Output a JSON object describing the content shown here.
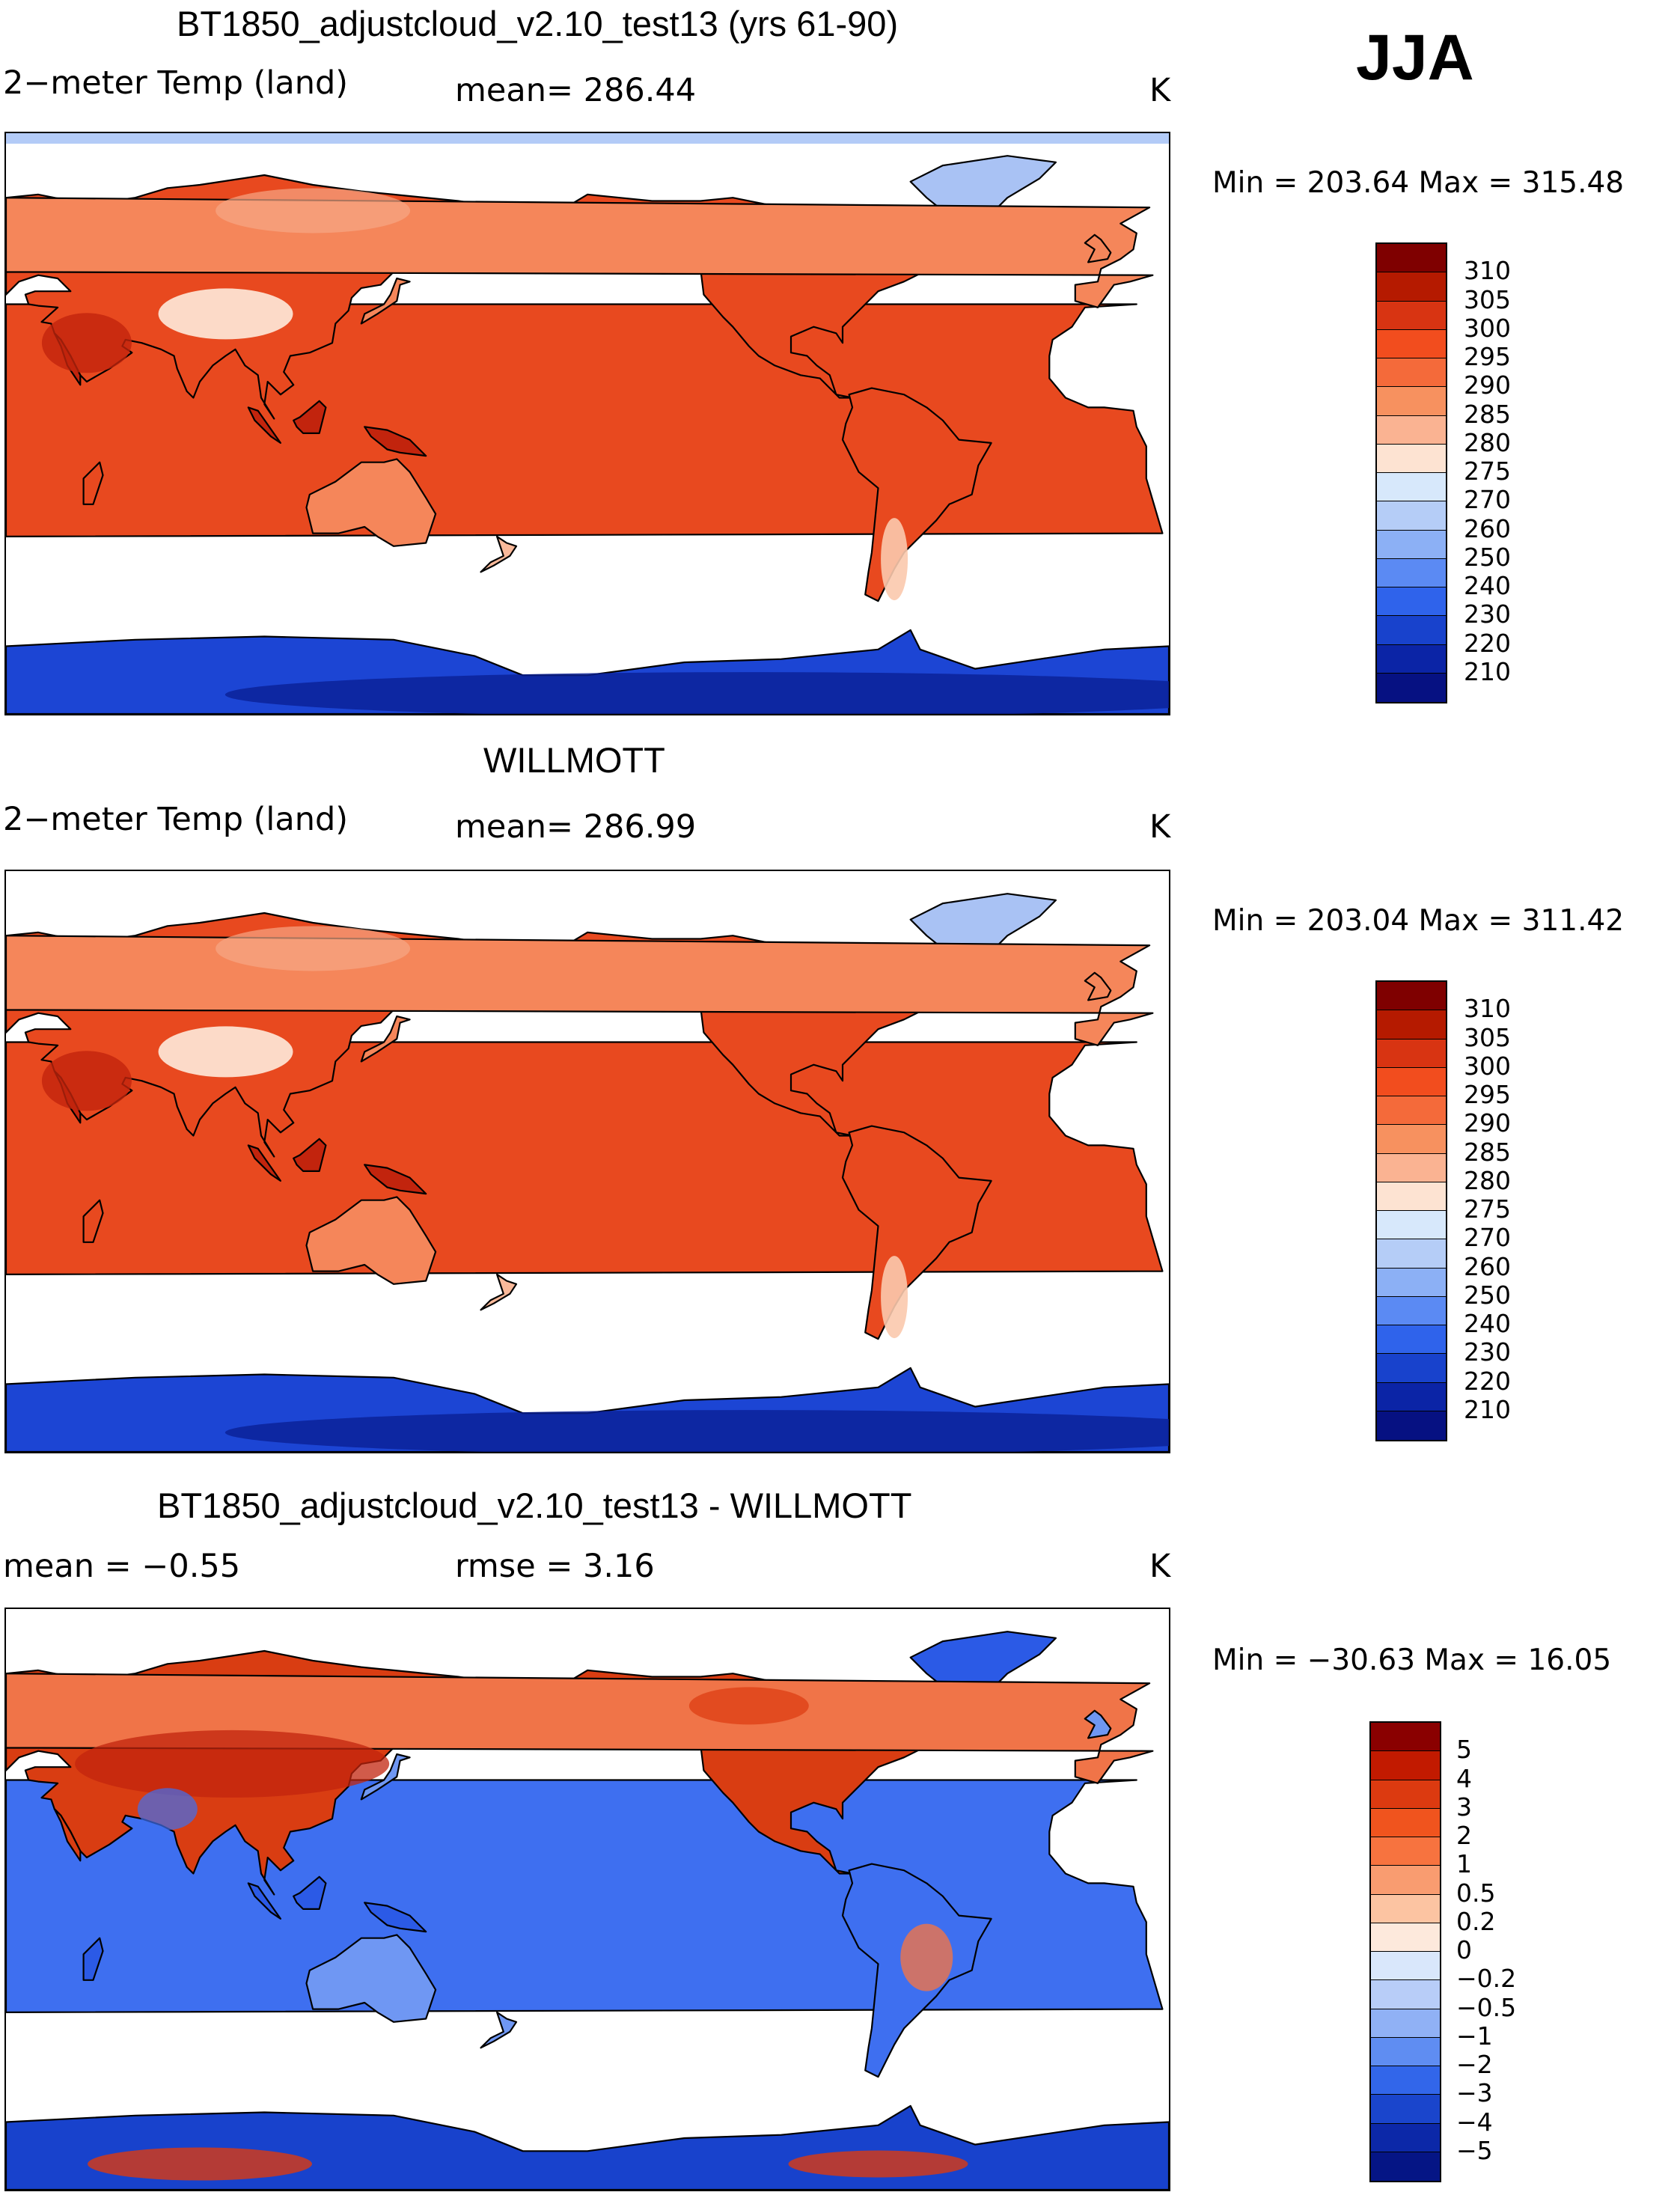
{
  "season": "JJA",
  "panels": [
    {
      "title": "BT1850_adjustcloud_v2.10_test13 (yrs 61-90)",
      "left_text": "2−meter Temp (land)",
      "mid_text": "mean= 286.44",
      "units": "K",
      "minmax_text": "Min = 203.64 Max = 315.48",
      "colorbar_labels": [
        "310",
        "305",
        "300",
        "295",
        "290",
        "285",
        "280",
        "275",
        "270",
        "260",
        "250",
        "240",
        "230",
        "220",
        "210"
      ],
      "colorbar_colors": [
        "#7f0000",
        "#b51a00",
        "#d83412",
        "#f24d1e",
        "#f46a3a",
        "#f7915f",
        "#fab392",
        "#fde3d2",
        "#d7e8fb",
        "#b5cdf7",
        "#8cb0f5",
        "#5b8af3",
        "#2f63eb",
        "#1842cc",
        "#0b24a6",
        "#061182"
      ],
      "map_scheme": "absolute"
    },
    {
      "title": "WILLMOTT",
      "left_text": "2−meter Temp (land)",
      "mid_text": "mean= 286.99",
      "units": "K",
      "minmax_text": "Min = 203.04 Max = 311.42",
      "colorbar_labels": [
        "310",
        "305",
        "300",
        "295",
        "290",
        "285",
        "280",
        "275",
        "270",
        "260",
        "250",
        "240",
        "230",
        "220",
        "210"
      ],
      "colorbar_colors": [
        "#7f0000",
        "#b51a00",
        "#d83412",
        "#f24d1e",
        "#f46a3a",
        "#f7915f",
        "#fab392",
        "#fde3d2",
        "#d7e8fb",
        "#b5cdf7",
        "#8cb0f5",
        "#5b8af3",
        "#2f63eb",
        "#1842cc",
        "#0b24a6",
        "#061182"
      ],
      "map_scheme": "absolute"
    },
    {
      "title": "BT1850_adjustcloud_v2.10_test13 - WILLMOTT",
      "left_text": "mean =  −0.55",
      "mid_text": "rmse =    3.16",
      "units": "K",
      "minmax_text": "Min = −30.63 Max =   16.05",
      "colorbar_labels": [
        "5",
        "4",
        "3",
        "2",
        "1",
        "0.5",
        "0.2",
        "0",
        "−0.2",
        "−0.5",
        "−1",
        "−2",
        "−3",
        "−4",
        "−5"
      ],
      "colorbar_colors": [
        "#8a0000",
        "#c21a00",
        "#dc3a10",
        "#f0541e",
        "#f7733f",
        "#f99c70",
        "#fcc4a2",
        "#fde9dc",
        "#d9e7fb",
        "#b8cdf8",
        "#90b1f5",
        "#5f8df2",
        "#3266ea",
        "#1a45cc",
        "#0c28a8",
        "#051585"
      ],
      "map_scheme": "difference"
    }
  ],
  "chart_data": [
    {
      "type": "heatmap",
      "title": "BT1850_adjustcloud_v2.10_test13 (yrs 61-90)",
      "variable": "2-meter Temp (land)",
      "units": "K",
      "mean": 286.44,
      "min": 203.64,
      "max": 315.48,
      "contour_levels": [
        210,
        220,
        230,
        240,
        250,
        260,
        270,
        275,
        280,
        285,
        290,
        295,
        300,
        305,
        310
      ]
    },
    {
      "type": "heatmap",
      "title": "WILLMOTT",
      "variable": "2-meter Temp (land)",
      "units": "K",
      "mean": 286.99,
      "min": 203.04,
      "max": 311.42,
      "contour_levels": [
        210,
        220,
        230,
        240,
        250,
        260,
        270,
        275,
        280,
        285,
        290,
        295,
        300,
        305,
        310
      ]
    },
    {
      "type": "heatmap",
      "title": "BT1850_adjustcloud_v2.10_test13 - WILLMOTT",
      "units": "K",
      "mean": -0.55,
      "rmse": 3.16,
      "min": -30.63,
      "max": 16.05,
      "contour_levels": [
        -5,
        -4,
        -3,
        -2,
        -1,
        -0.5,
        -0.2,
        0,
        0.2,
        0.5,
        1,
        2,
        3,
        4,
        5
      ]
    }
  ]
}
